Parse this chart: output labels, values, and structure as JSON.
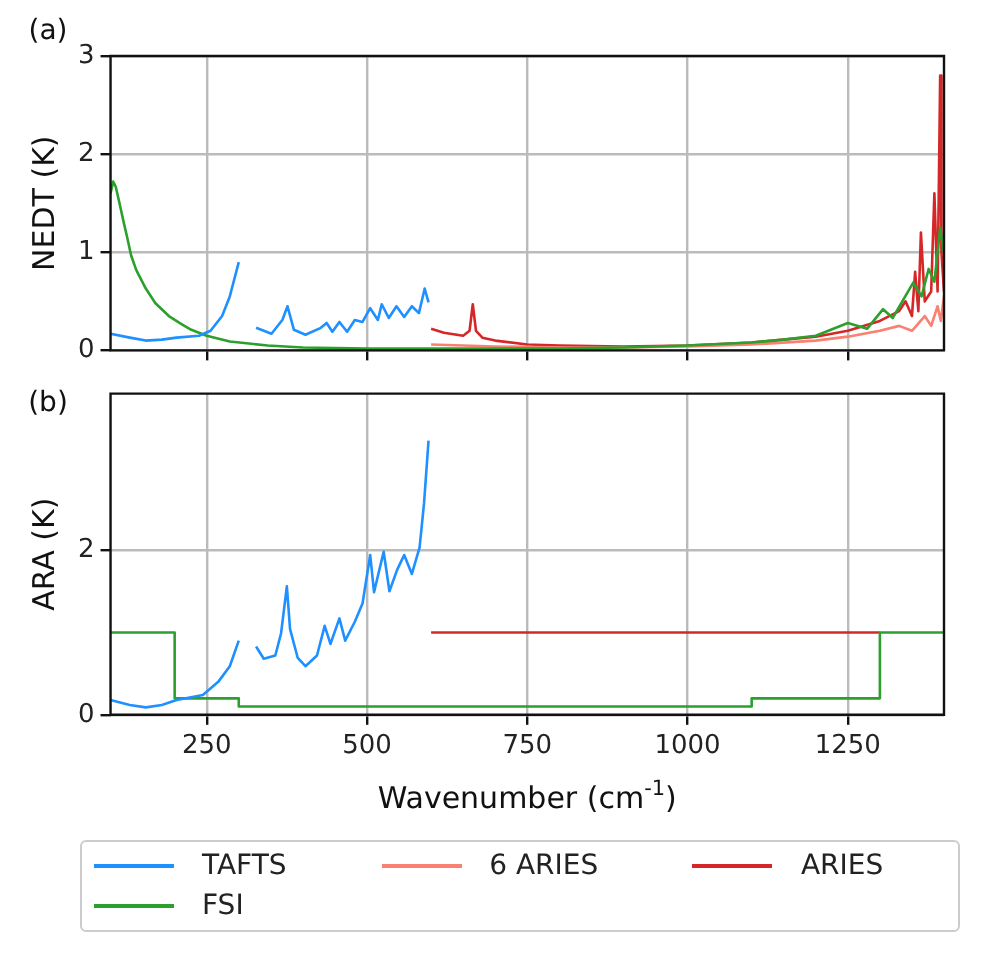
{
  "chart_data": [
    {
      "type": "line",
      "ylabel": "NEDT (K)",
      "annotations": [
        "(a)"
      ],
      "xlim": [
        100,
        1400
      ],
      "xticks": [
        250,
        500,
        750,
        1000,
        1250
      ],
      "ylim": [
        0,
        3
      ],
      "yticks": [
        0,
        1,
        2,
        3
      ],
      "grid": true,
      "legend": "bottom",
      "tick_labels": "y",
      "series": [
        {
          "name": "TAFTS",
          "color": "#1e90ff",
          "x": [
            100,
            130,
            155,
            180,
            203,
            238,
            256,
            274,
            286,
            300,
            310,
            327,
            351,
            368,
            376,
            386,
            404,
            428,
            437,
            446,
            457,
            469,
            481,
            493,
            505,
            517,
            523,
            534,
            546,
            558,
            570,
            581,
            590,
            596
          ],
          "values": [
            0.17,
            0.13,
            0.1,
            0.11,
            0.13,
            0.15,
            0.2,
            0.35,
            0.55,
            0.9,
            null,
            0.23,
            0.17,
            0.31,
            0.45,
            0.21,
            0.16,
            0.23,
            0.28,
            0.19,
            0.29,
            0.19,
            0.31,
            0.29,
            0.43,
            0.31,
            0.47,
            0.33,
            0.45,
            0.34,
            0.45,
            0.38,
            0.63,
            0.49
          ]
        },
        {
          "name": "FSI",
          "color": "#2ca02c",
          "x": [
            100,
            104,
            108,
            114,
            120,
            126,
            132,
            140,
            155,
            170,
            191,
            210,
            226,
            250,
            286,
            345,
            400,
            500,
            600,
            700,
            800,
            900,
            1000,
            1100,
            1150,
            1200,
            1250,
            1280,
            1305,
            1320,
            1335,
            1352,
            1365,
            1376,
            1385,
            1390,
            1394,
            1400
          ],
          "values": [
            1.6,
            1.72,
            1.67,
            1.5,
            1.32,
            1.15,
            0.97,
            0.82,
            0.63,
            0.48,
            0.35,
            0.27,
            0.21,
            0.15,
            0.09,
            0.05,
            0.03,
            0.02,
            0.02,
            0.02,
            0.02,
            0.03,
            0.05,
            0.08,
            0.11,
            0.15,
            0.28,
            0.22,
            0.42,
            0.33,
            0.5,
            0.69,
            0.55,
            0.83,
            0.7,
            1.0,
            1.25,
            1.0
          ]
        },
        {
          "name": "6 ARIES",
          "color": "#fa8072",
          "x": [
            600,
            650,
            700,
            800,
            900,
            1000,
            1100,
            1200,
            1250,
            1300,
            1330,
            1350,
            1370,
            1380,
            1390,
            1395,
            1400
          ],
          "values": [
            0.06,
            0.05,
            0.04,
            0.03,
            0.03,
            0.04,
            0.06,
            0.1,
            0.14,
            0.2,
            0.25,
            0.2,
            0.35,
            0.25,
            0.45,
            0.3,
            0.55
          ]
        },
        {
          "name": "ARIES",
          "color": "#d62728",
          "x": [
            600,
            620,
            650,
            660,
            665,
            670,
            680,
            700,
            750,
            800,
            900,
            1000,
            1100,
            1200,
            1250,
            1300,
            1330,
            1340,
            1350,
            1355,
            1360,
            1364,
            1370,
            1380,
            1385,
            1390,
            1394,
            1396,
            1400
          ],
          "values": [
            0.22,
            0.18,
            0.15,
            0.2,
            0.47,
            0.2,
            0.13,
            0.1,
            0.06,
            0.05,
            0.04,
            0.05,
            0.08,
            0.14,
            0.2,
            0.3,
            0.4,
            0.5,
            0.35,
            0.8,
            0.4,
            1.2,
            0.5,
            0.6,
            1.6,
            0.6,
            2.8,
            1.0,
            0.6
          ]
        }
      ]
    },
    {
      "type": "line",
      "xlabel": "Wavenumber (cm$^{-1}$)",
      "ylabel": "ARA (K)",
      "annotations": [
        "(b)"
      ],
      "xlim": [
        100,
        1400
      ],
      "xticks": [
        250,
        500,
        750,
        1000,
        1250
      ],
      "ylim": [
        0,
        3.9
      ],
      "yticks": [
        0,
        2
      ],
      "grid": true,
      "series": [
        {
          "color": "#1e90ff",
          "x": [
            100,
            130,
            155,
            180,
            203,
            244,
            268,
            286,
            300,
            310,
            327,
            339,
            357,
            366,
            375,
            380,
            392,
            404,
            422,
            434,
            443,
            457,
            466,
            481,
            493,
            505,
            511,
            526,
            535,
            547,
            558,
            570,
            582,
            589,
            596
          ],
          "values": [
            0.18,
            0.12,
            0.09,
            0.12,
            0.18,
            0.24,
            0.4,
            0.59,
            0.9,
            null,
            0.83,
            0.68,
            0.72,
            0.99,
            1.56,
            1.04,
            0.69,
            0.59,
            0.72,
            1.08,
            0.86,
            1.17,
            0.9,
            1.13,
            1.35,
            1.94,
            1.49,
            1.98,
            1.5,
            1.76,
            1.94,
            1.71,
            2.03,
            2.57,
            3.33
          ]
        },
        {
          "type": "step",
          "color": "#2ca02c",
          "x": [
            100,
            200,
            300,
            1100,
            1300,
            1400
          ],
          "values": [
            1,
            0.2,
            0.1,
            0.2,
            1,
            1
          ]
        },
        {
          "color": "#d62728",
          "x": [
            600,
            1300
          ],
          "values": [
            1,
            1
          ]
        }
      ]
    }
  ]
}
